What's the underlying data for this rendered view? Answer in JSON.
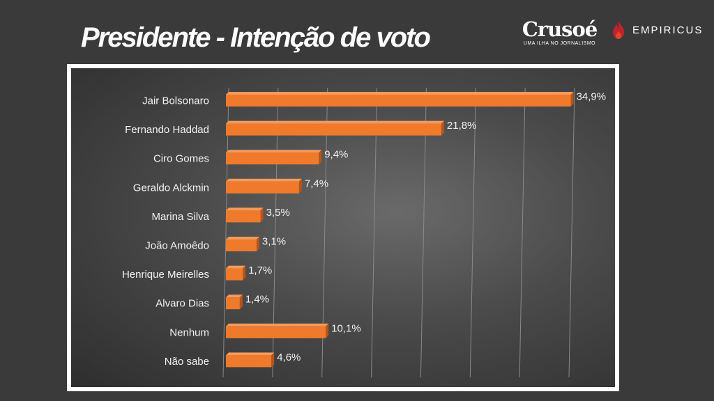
{
  "slide": {
    "title": "Presidente - Intenção de voto"
  },
  "logos": {
    "crusoe_name": "Crusoé",
    "crusoe_tagline": "UMA ILHA NO JORNALISMO",
    "empiricus_name": "EMPIRICUS"
  },
  "colors": {
    "bar": "#f07a2c",
    "bar_dark": "#b85418",
    "background": "#3a3a3a"
  },
  "chart_data": {
    "type": "bar",
    "orientation": "horizontal",
    "categories": [
      "Jair Bolsonaro",
      "Fernando Haddad",
      "Ciro Gomes",
      "Geraldo Alckmin",
      "Marina Silva",
      "João Amoêdo",
      "Henrique Meirelles",
      "Alvaro Dias",
      "Nenhum",
      "Não sabe"
    ],
    "values": [
      34.9,
      21.8,
      9.4,
      7.4,
      3.5,
      3.1,
      1.7,
      1.4,
      10.1,
      4.6
    ],
    "value_labels": [
      "34,9%",
      "21,8%",
      "9,4%",
      "7,4%",
      "3,5%",
      "3,1%",
      "1,7%",
      "1,4%",
      "10,1%",
      "4,6%"
    ],
    "xlim": [
      0,
      35
    ],
    "grid": true,
    "legend": "none",
    "title": "",
    "xlabel": "",
    "ylabel": ""
  }
}
